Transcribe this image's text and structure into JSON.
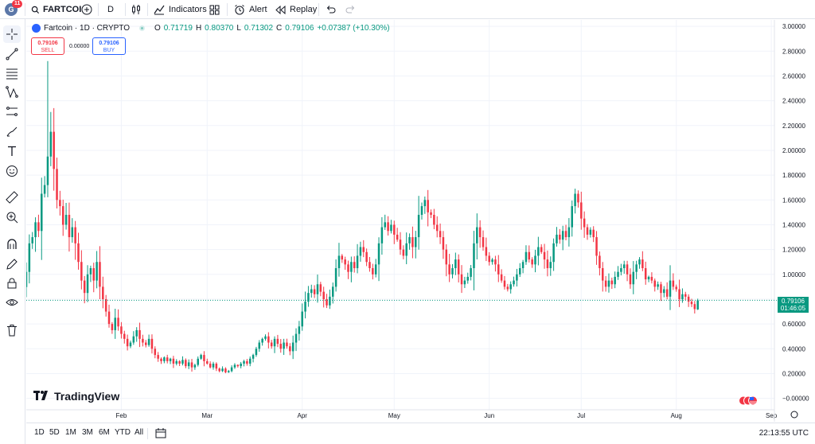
{
  "topbar": {
    "avatar_letter": "G",
    "notifications": "11",
    "symbol": "FARTCOI",
    "interval": "D",
    "indicators": "Indicators",
    "alert": "Alert",
    "replay": "Replay"
  },
  "legend": {
    "title": "Fartcoin · 1D · CRYPTO",
    "o_label": "O",
    "o_value": "0.71719",
    "h_label": "H",
    "h_value": "0.80370",
    "l_label": "L",
    "l_value": "0.71302",
    "c_label": "C",
    "c_value": "0.79106",
    "change": "+0.07387 (+10.30%)"
  },
  "trade": {
    "sell_price": "0.79106",
    "sell_label": "SELL",
    "spread": "0.00000",
    "buy_price": "0.79106",
    "buy_label": "BUY"
  },
  "price_tag": {
    "price": "0.79106",
    "countdown": "01:46:05"
  },
  "logo": "TradingView",
  "bottombar": {
    "ranges": [
      "1D",
      "5D",
      "1M",
      "3M",
      "6M",
      "YTD",
      "All"
    ],
    "clock": "22:13:55 UTC"
  },
  "colors": {
    "up": "#089981",
    "down": "#f23645",
    "grid": "#f0f3fa",
    "accent": "#2962ff"
  },
  "chart_data": {
    "type": "candlestick",
    "interval": "1D",
    "y_ticks": [
      "3.00000",
      "2.80000",
      "2.60000",
      "2.40000",
      "2.20000",
      "2.00000",
      "1.80000",
      "1.60000",
      "1.40000",
      "1.20000",
      "1.00000",
      "0.80000",
      "0.60000",
      "0.40000",
      "0.20000",
      "−0.00000"
    ],
    "y_tick_values": [
      3.0,
      2.8,
      2.6,
      2.4,
      2.2,
      2.0,
      1.8,
      1.6,
      1.4,
      1.2,
      1.0,
      0.8,
      0.6,
      0.4,
      0.2,
      0.0
    ],
    "ylim": [
      -0.06,
      3.02
    ],
    "x_ticks": [
      "Feb",
      "Mar",
      "Apr",
      "May",
      "Jun",
      "Jul",
      "Aug",
      "Sep"
    ],
    "x_tick_days": [
      31,
      59,
      90,
      120,
      151,
      181,
      212,
      243
    ],
    "day_range": [
      0,
      244
    ],
    "anchors_close": [
      [
        0,
        1.02
      ],
      [
        1,
        1.25
      ],
      [
        2,
        1.3
      ],
      [
        3,
        1.42
      ],
      [
        4,
        1.35
      ],
      [
        5,
        1.65
      ],
      [
        6,
        1.72
      ],
      [
        7,
        1.95
      ],
      [
        8,
        2.15
      ],
      [
        9,
        1.85
      ],
      [
        10,
        1.6
      ],
      [
        11,
        1.55
      ],
      [
        12,
        1.4
      ],
      [
        13,
        1.48
      ],
      [
        14,
        1.3
      ],
      [
        15,
        1.38
      ],
      [
        16,
        1.25
      ],
      [
        17,
        1.1
      ],
      [
        18,
        0.95
      ],
      [
        19,
        0.85
      ],
      [
        20,
        1.0
      ],
      [
        21,
        1.05
      ],
      [
        22,
        0.95
      ],
      [
        23,
        1.1
      ],
      [
        24,
        0.9
      ],
      [
        25,
        0.8
      ],
      [
        26,
        0.7
      ],
      [
        27,
        0.6
      ],
      [
        28,
        0.55
      ],
      [
        29,
        0.65
      ],
      [
        30,
        0.58
      ],
      [
        31,
        0.52
      ],
      [
        32,
        0.48
      ],
      [
        33,
        0.42
      ],
      [
        34,
        0.45
      ],
      [
        35,
        0.5
      ],
      [
        36,
        0.55
      ],
      [
        37,
        0.48
      ],
      [
        38,
        0.45
      ],
      [
        39,
        0.43
      ],
      [
        40,
        0.48
      ],
      [
        41,
        0.4
      ],
      [
        42,
        0.35
      ],
      [
        43,
        0.32
      ],
      [
        44,
        0.3
      ],
      [
        45,
        0.33
      ],
      [
        46,
        0.3
      ],
      [
        47,
        0.32
      ],
      [
        48,
        0.28
      ],
      [
        49,
        0.3
      ],
      [
        50,
        0.28
      ],
      [
        51,
        0.31
      ],
      [
        52,
        0.26
      ],
      [
        53,
        0.29
      ],
      [
        54,
        0.25
      ],
      [
        55,
        0.27
      ],
      [
        56,
        0.32
      ],
      [
        57,
        0.35
      ],
      [
        58,
        0.3
      ],
      [
        59,
        0.28
      ],
      [
        60,
        0.25
      ],
      [
        61,
        0.28
      ],
      [
        62,
        0.24
      ],
      [
        63,
        0.22
      ],
      [
        64,
        0.24
      ],
      [
        65,
        0.21
      ],
      [
        66,
        0.22
      ],
      [
        67,
        0.25
      ],
      [
        68,
        0.27
      ],
      [
        69,
        0.26
      ],
      [
        70,
        0.28
      ],
      [
        71,
        0.3
      ],
      [
        72,
        0.28
      ],
      [
        73,
        0.32
      ],
      [
        74,
        0.35
      ],
      [
        75,
        0.4
      ],
      [
        76,
        0.45
      ],
      [
        77,
        0.48
      ],
      [
        78,
        0.5
      ],
      [
        79,
        0.45
      ],
      [
        80,
        0.42
      ],
      [
        81,
        0.48
      ],
      [
        82,
        0.44
      ],
      [
        83,
        0.4
      ],
      [
        84,
        0.45
      ],
      [
        85,
        0.42
      ],
      [
        86,
        0.38
      ],
      [
        87,
        0.45
      ],
      [
        88,
        0.52
      ],
      [
        89,
        0.58
      ],
      [
        90,
        0.7
      ],
      [
        91,
        0.78
      ],
      [
        92,
        0.85
      ],
      [
        93,
        0.88
      ],
      [
        94,
        0.84
      ],
      [
        95,
        0.92
      ],
      [
        96,
        0.86
      ],
      [
        97,
        0.8
      ],
      [
        98,
        0.75
      ],
      [
        99,
        0.82
      ],
      [
        100,
        0.9
      ],
      [
        101,
        1.05
      ],
      [
        102,
        1.15
      ],
      [
        103,
        1.12
      ],
      [
        104,
        1.08
      ],
      [
        105,
        1.02
      ],
      [
        106,
        1.1
      ],
      [
        107,
        1.05
      ],
      [
        108,
        1.15
      ],
      [
        109,
        1.22
      ],
      [
        110,
        1.18
      ],
      [
        111,
        1.1
      ],
      [
        112,
        1.05
      ],
      [
        113,
        1.0
      ],
      [
        114,
        1.08
      ],
      [
        115,
        1.25
      ],
      [
        116,
        1.38
      ],
      [
        117,
        1.42
      ],
      [
        118,
        1.35
      ],
      [
        119,
        1.4
      ],
      [
        120,
        1.32
      ],
      [
        121,
        1.28
      ],
      [
        122,
        1.2
      ],
      [
        123,
        1.15
      ],
      [
        124,
        1.25
      ],
      [
        125,
        1.3
      ],
      [
        126,
        1.22
      ],
      [
        127,
        1.3
      ],
      [
        128,
        1.48
      ],
      [
        129,
        1.55
      ],
      [
        130,
        1.6
      ],
      [
        131,
        1.5
      ],
      [
        132,
        1.48
      ],
      [
        133,
        1.4
      ],
      [
        134,
        1.35
      ],
      [
        135,
        1.3
      ],
      [
        136,
        1.2
      ],
      [
        137,
        1.08
      ],
      [
        138,
        1.0
      ],
      [
        139,
        1.05
      ],
      [
        140,
        1.12
      ],
      [
        141,
        1.0
      ],
      [
        142,
        0.92
      ],
      [
        143,
        0.95
      ],
      [
        144,
        0.98
      ],
      [
        145,
        1.05
      ],
      [
        146,
        1.25
      ],
      [
        147,
        1.38
      ],
      [
        148,
        1.3
      ],
      [
        149,
        1.22
      ],
      [
        150,
        1.15
      ],
      [
        151,
        1.1
      ],
      [
        152,
        1.12
      ],
      [
        153,
        1.08
      ],
      [
        154,
        1.0
      ],
      [
        155,
        0.95
      ],
      [
        156,
        0.9
      ],
      [
        157,
        0.88
      ],
      [
        158,
        0.92
      ],
      [
        159,
        0.95
      ],
      [
        160,
        1.0
      ],
      [
        161,
        1.05
      ],
      [
        162,
        1.1
      ],
      [
        163,
        1.18
      ],
      [
        164,
        1.12
      ],
      [
        165,
        1.08
      ],
      [
        166,
        1.15
      ],
      [
        167,
        1.22
      ],
      [
        168,
        1.18
      ],
      [
        169,
        1.12
      ],
      [
        170,
        1.05
      ],
      [
        171,
        1.1
      ],
      [
        172,
        1.25
      ],
      [
        173,
        1.32
      ],
      [
        174,
        1.28
      ],
      [
        175,
        1.35
      ],
      [
        176,
        1.3
      ],
      [
        177,
        1.38
      ],
      [
        178,
        1.55
      ],
      [
        179,
        1.65
      ],
      [
        180,
        1.58
      ],
      [
        181,
        1.45
      ],
      [
        182,
        1.38
      ],
      [
        183,
        1.32
      ],
      [
        184,
        1.36
      ],
      [
        185,
        1.3
      ],
      [
        186,
        1.15
      ],
      [
        187,
        1.05
      ],
      [
        188,
        0.95
      ],
      [
        189,
        0.9
      ],
      [
        190,
        0.95
      ],
      [
        191,
        0.92
      ],
      [
        192,
        0.98
      ],
      [
        193,
        1.02
      ],
      [
        194,
        1.05
      ],
      [
        195,
        1.08
      ],
      [
        196,
        1.0
      ],
      [
        197,
        0.92
      ],
      [
        198,
        1.02
      ],
      [
        199,
        1.08
      ],
      [
        200,
        1.12
      ],
      [
        201,
        1.05
      ],
      [
        202,
        0.96
      ],
      [
        203,
        0.98
      ],
      [
        204,
        0.95
      ],
      [
        205,
        0.9
      ],
      [
        206,
        0.92
      ],
      [
        207,
        0.85
      ],
      [
        208,
        0.88
      ],
      [
        209,
        0.82
      ],
      [
        210,
        0.95
      ],
      [
        211,
        0.9
      ],
      [
        212,
        0.88
      ],
      [
        213,
        0.8
      ],
      [
        214,
        0.84
      ],
      [
        215,
        0.82
      ],
      [
        216,
        0.78
      ],
      [
        217,
        0.76
      ],
      [
        218,
        0.72
      ],
      [
        219,
        0.79
      ]
    ],
    "last": {
      "open": 0.71719,
      "high": 0.8037,
      "low": 0.71302,
      "close": 0.79106
    },
    "current_price": 0.79106
  }
}
